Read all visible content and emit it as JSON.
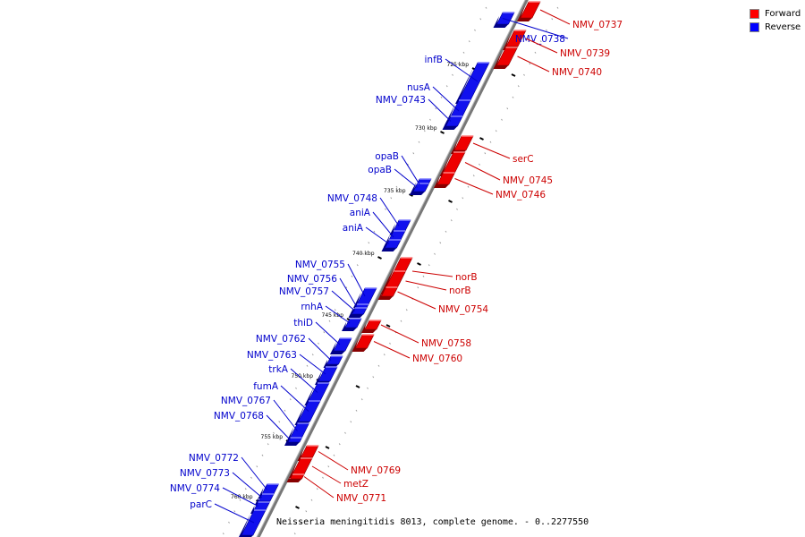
{
  "legend": {
    "forward_label": "Forward",
    "reverse_label": "Reverse",
    "forward_color": "#ff0000",
    "reverse_color": "#0000ff"
  },
  "caption": "Neisseria meningitidis 8013, complete genome. - 0..2277550",
  "colors": {
    "forward": "#ee0000",
    "forward_dark": "#880000",
    "forward_light": "#ff8080",
    "reverse": "#1111ee",
    "reverse_dark": "#000088",
    "reverse_light": "#7f7fff",
    "backbone": "#777777",
    "label_forward": "#cc0000",
    "label_reverse": "#0000cc"
  },
  "ticks": [
    "725 kbp",
    "730 kbp",
    "735 kbp",
    "740 kbp",
    "745 kbp",
    "750 kbp",
    "755 kbp",
    "760 kbp"
  ],
  "genes": [
    {
      "label": "NMV_0737",
      "strand": "forward"
    },
    {
      "label": "NMV_0738",
      "strand": "reverse"
    },
    {
      "label": "NMV_0739",
      "strand": "forward"
    },
    {
      "label": "NMV_0740",
      "strand": "forward"
    },
    {
      "label": "infB",
      "strand": "reverse"
    },
    {
      "label": "nusA",
      "strand": "reverse"
    },
    {
      "label": "NMV_0743",
      "strand": "reverse"
    },
    {
      "label": "serC",
      "strand": "forward"
    },
    {
      "label": "NMV_0745",
      "strand": "forward"
    },
    {
      "label": "NMV_0746",
      "strand": "forward"
    },
    {
      "label": "opaB",
      "strand": "reverse"
    },
    {
      "label": "opaB",
      "strand": "reverse"
    },
    {
      "label": "NMV_0748",
      "strand": "reverse"
    },
    {
      "label": "aniA",
      "strand": "reverse"
    },
    {
      "label": "aniA",
      "strand": "reverse"
    },
    {
      "label": "norB",
      "strand": "forward"
    },
    {
      "label": "norB",
      "strand": "forward"
    },
    {
      "label": "NMV_0754",
      "strand": "forward"
    },
    {
      "label": "NMV_0755",
      "strand": "reverse"
    },
    {
      "label": "NMV_0756",
      "strand": "reverse"
    },
    {
      "label": "NMV_0757",
      "strand": "reverse"
    },
    {
      "label": "rnhA",
      "strand": "reverse"
    },
    {
      "label": "thiD",
      "strand": "reverse"
    },
    {
      "label": "NMV_0758",
      "strand": "forward"
    },
    {
      "label": "NMV_0760",
      "strand": "forward"
    },
    {
      "label": "NMV_0762",
      "strand": "reverse"
    },
    {
      "label": "NMV_0763",
      "strand": "reverse"
    },
    {
      "label": "trkA",
      "strand": "reverse"
    },
    {
      "label": "fumA",
      "strand": "reverse"
    },
    {
      "label": "NMV_0767",
      "strand": "reverse"
    },
    {
      "label": "NMV_0768",
      "strand": "reverse"
    },
    {
      "label": "NMV_0769",
      "strand": "forward"
    },
    {
      "label": "metZ",
      "strand": "forward"
    },
    {
      "label": "NMV_0771",
      "strand": "forward"
    },
    {
      "label": "NMV_0772",
      "strand": "reverse"
    },
    {
      "label": "NMV_0773",
      "strand": "reverse"
    },
    {
      "label": "NMV_0774",
      "strand": "reverse"
    },
    {
      "label": "parC",
      "strand": "reverse"
    }
  ]
}
